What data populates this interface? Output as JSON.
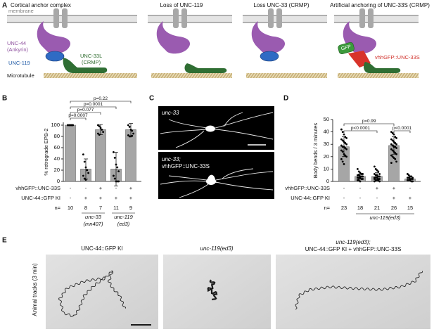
{
  "panels": {
    "A": "A",
    "B": "B",
    "C": "C",
    "D": "D",
    "E": "E"
  },
  "panel_a": {
    "titles": [
      "Cortical anchor complex",
      "Loss of UNC-119",
      "Loss UNC-33 (CRMP)",
      "Artificial anchoring of UNC-33S (CRMP)"
    ],
    "membrane": "membrane",
    "unc44": [
      "UNC-44",
      "(Ankyrin)"
    ],
    "unc119": "UNC-119",
    "unc33l": [
      "UNC-33L",
      "(CRMP)"
    ],
    "microtubule": "Microtubule",
    "gfp": "GFP",
    "vhh": "vhhGFP::UNC-33S"
  },
  "chart_data": [
    {
      "type": "bar",
      "ylabel": "% retrograde EPB-2",
      "ylim": [
        0,
        105
      ],
      "yticks": [
        0,
        20,
        40,
        60,
        80,
        100
      ],
      "color": "#a6a6a6",
      "values": [
        100,
        22,
        92,
        22,
        92
      ],
      "errors": [
        0,
        18,
        9,
        30,
        11
      ],
      "points": [
        [
          100,
          100,
          100,
          100,
          100,
          100,
          100,
          100,
          100,
          100
        ],
        [
          48,
          35,
          25,
          20,
          15,
          10,
          5,
          3
        ],
        [
          100,
          98,
          95,
          92,
          88,
          85,
          83
        ],
        [
          52,
          42,
          30,
          25,
          18,
          10,
          5,
          0,
          0,
          0,
          10
        ],
        [
          100,
          97,
          92,
          90,
          85,
          82,
          80,
          80,
          81
        ]
      ],
      "rows": [
        {
          "label": "vhhGFP::UNC-33S",
          "values": [
            "-",
            "-",
            "+",
            "-",
            "+"
          ]
        },
        {
          "label": "UNC-44::GFP KI",
          "values": [
            "-",
            "+",
            "+",
            "+",
            "+"
          ]
        }
      ],
      "n_label": "n=",
      "n": [
        10,
        8,
        7,
        11,
        9
      ],
      "groups": [
        [
          "unc-33",
          "(mn407)"
        ],
        [
          "unc-119",
          "(ed3)"
        ]
      ],
      "comparisons": [
        "p=0.0007",
        "p=0.077",
        "p=0.0001",
        "p=0.22"
      ]
    },
    {
      "type": "bar",
      "ylabel": "Body bends / 3 minutes",
      "ylim": [
        0,
        50
      ],
      "yticks": [
        0,
        10,
        20,
        30,
        40,
        50
      ],
      "color": "#a6a6a6",
      "values": [
        28,
        4,
        4,
        29,
        2
      ],
      "errors": [
        8,
        2,
        3,
        7,
        1.5
      ],
      "points": [
        [
          42,
          40,
          38,
          36,
          35,
          34,
          33,
          32,
          31,
          30,
          29,
          28,
          28,
          27,
          26,
          25,
          24,
          22,
          21,
          20,
          18,
          16,
          14
        ],
        [
          10,
          8,
          7,
          6,
          6,
          5,
          5,
          4,
          4,
          4,
          3,
          3,
          3,
          2,
          2,
          1,
          1,
          0
        ],
        [
          12,
          10,
          9,
          8,
          6,
          6,
          5,
          5,
          4,
          4,
          3,
          3,
          3,
          2,
          2,
          2,
          1,
          1,
          1,
          0,
          0
        ],
        [
          40,
          39,
          38,
          36,
          35,
          34,
          33,
          32,
          31,
          30,
          30,
          29,
          28,
          28,
          27,
          26,
          25,
          24,
          23,
          22,
          21,
          20,
          19,
          18,
          16,
          15
        ],
        [
          6,
          5,
          4,
          4,
          3,
          3,
          3,
          2,
          2,
          2,
          1,
          1,
          1,
          0,
          0
        ]
      ],
      "rows": [
        {
          "label": "vhhGFP::UNC-33S",
          "values": [
            "-",
            "-",
            "+",
            "+",
            "-"
          ]
        },
        {
          "label": "UNC-44::GFP KI",
          "values": [
            "-",
            "-",
            "-",
            "+",
            "+"
          ]
        }
      ],
      "n_label": "n=",
      "n": [
        23,
        18,
        21,
        26,
        15
      ],
      "groups": [
        [
          "unc-119(ed3)"
        ]
      ],
      "comparisons": [
        "p=0.99",
        "p<0.0001",
        "p<0.0001"
      ]
    }
  ],
  "panel_c": {
    "top": "unc-33",
    "bottom": [
      "unc-33;",
      "vhhGFP::UNC-33S"
    ]
  },
  "panel_e": {
    "ylabel": "Animal tracks (3 min)",
    "titles": [
      [
        "UNC-44::GFP KI"
      ],
      [
        "unc-119(ed3)"
      ],
      [
        "unc-119(ed3);",
        "UNC-44::GFP KI + vhhGFP::UNC-33S"
      ]
    ]
  }
}
